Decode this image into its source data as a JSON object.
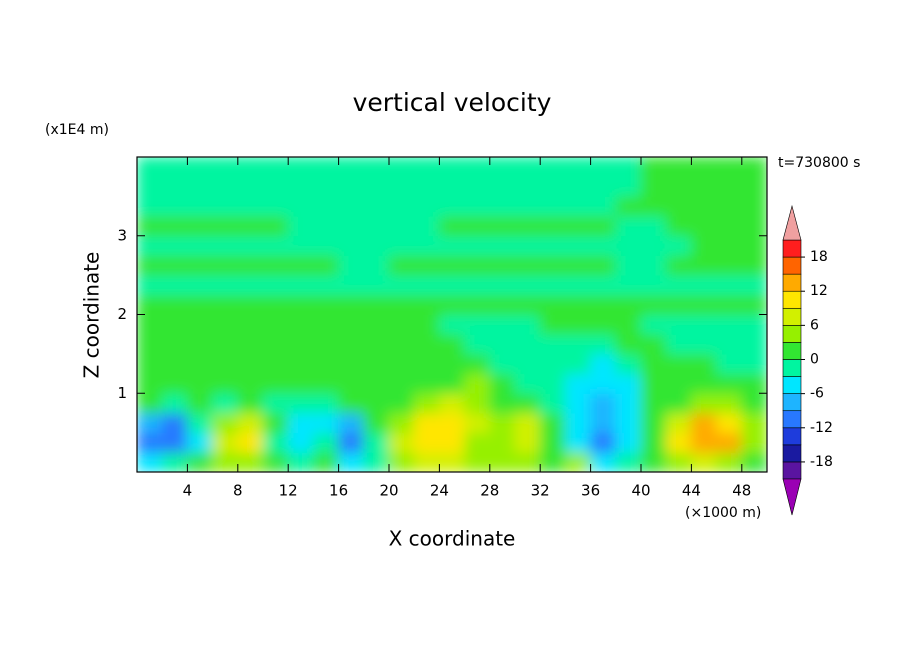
{
  "chart_data": {
    "type": "contour",
    "title": "vertical velocity",
    "x_label": "X coordinate",
    "y_label": "Z coordinate",
    "x_unit": "(×1000 m)",
    "y_unit": "(x1E4 m)",
    "time_label": "t=730800 s",
    "xlim": [
      0,
      50
    ],
    "ylim": [
      0,
      4
    ],
    "xticks": [
      4,
      8,
      12,
      16,
      20,
      24,
      28,
      32,
      36,
      40,
      44,
      48
    ],
    "yticks": [
      1,
      2,
      3
    ],
    "levels": [
      -21,
      -18,
      -15,
      -12,
      -9,
      -6,
      -3,
      0,
      3,
      6,
      9,
      12,
      15,
      18,
      21
    ],
    "colors": [
      "#5a14a0",
      "#1a1aa0",
      "#1e3cdc",
      "#2878ff",
      "#1eb4ff",
      "#00e6ff",
      "#00f5a0",
      "#32e632",
      "#96f000",
      "#d2f000",
      "#ffe600",
      "#ffaa00",
      "#ff6400",
      "#ff1e1e"
    ],
    "extend_colors": [
      "#9a00b4",
      "#f0a0a0"
    ],
    "colorbar_ticks": [
      -18,
      -12,
      -6,
      0,
      6,
      12,
      18
    ],
    "x": [
      1,
      3,
      5,
      7,
      9,
      11,
      13,
      15,
      17,
      19,
      21,
      23,
      25,
      27,
      29,
      31,
      33,
      35,
      37,
      39,
      41,
      43,
      45,
      47,
      49
    ],
    "y": [
      0.125,
      0.375,
      0.625,
      0.875,
      1.125,
      1.375,
      1.625,
      1.875,
      2.125,
      2.375,
      2.625,
      2.875,
      3.125,
      3.375,
      3.625,
      3.875
    ],
    "values": [
      [
        -4,
        -3,
        1,
        3,
        4,
        1,
        -1,
        1,
        -4,
        -1,
        4,
        6,
        7,
        3,
        4,
        5,
        1,
        4,
        -4,
        -2,
        1,
        4,
        6,
        5,
        2
      ],
      [
        -10,
        -12,
        -4,
        6,
        9,
        -1,
        -5,
        -2,
        -12,
        -2,
        6,
        10,
        11,
        5,
        5,
        8,
        2,
        -4,
        -12,
        -6,
        1,
        10,
        14,
        13,
        5
      ],
      [
        -8,
        -10,
        -3,
        4,
        7,
        1,
        -6,
        -4,
        -8,
        1,
        5,
        10,
        9,
        6,
        4,
        7,
        1,
        -6,
        -9,
        -5,
        1,
        8,
        12,
        11,
        4
      ],
      [
        1,
        -1,
        1,
        -1,
        1,
        -1,
        -1,
        -1,
        1,
        1,
        1,
        4,
        7,
        5,
        2,
        1,
        -1,
        -5,
        -7,
        -4,
        1,
        1,
        5,
        4,
        1
      ],
      [
        1,
        1,
        1,
        1,
        1,
        1,
        1,
        1,
        1,
        1,
        1,
        1,
        2,
        4,
        1,
        -1,
        -1,
        -4,
        -6,
        -4,
        1,
        1,
        1,
        1,
        1
      ],
      [
        1,
        1,
        1,
        1,
        1,
        1,
        1,
        1,
        1,
        1,
        1,
        1,
        1,
        1,
        -1,
        -1,
        -1,
        -1,
        -4,
        -1,
        1,
        1,
        1,
        -1,
        -1
      ],
      [
        1,
        1,
        1,
        1,
        1,
        1,
        1,
        1,
        1,
        1,
        1,
        1,
        1,
        -1,
        -1,
        -1,
        -1,
        -1,
        -1,
        1,
        1,
        -1,
        -1,
        -1,
        -1
      ],
      [
        1,
        1,
        1,
        1,
        1,
        1,
        1,
        1,
        1,
        1,
        1,
        1,
        -1,
        -1,
        -1,
        -1,
        1,
        1,
        1,
        1,
        -1,
        -1,
        -1,
        -1,
        -1
      ],
      [
        1,
        1,
        1,
        1,
        1,
        1,
        1,
        1,
        1,
        1,
        1,
        1,
        1,
        1,
        1,
        1,
        1,
        1,
        1,
        1,
        1,
        1,
        1,
        1,
        1
      ],
      [
        -1,
        -1,
        -1,
        -1,
        -1,
        -1,
        -1,
        -1,
        -1,
        -1,
        -1,
        -1,
        -1,
        -1,
        -1,
        -1,
        -1,
        -1,
        -1,
        -1,
        -1,
        -1,
        -1,
        -1,
        -1
      ],
      [
        1,
        1,
        1,
        1,
        1,
        1,
        1,
        1,
        -1,
        -1,
        1,
        1,
        1,
        1,
        1,
        1,
        1,
        1,
        1,
        -1,
        -1,
        1,
        1,
        1,
        1
      ],
      [
        -1,
        -1,
        -1,
        -1,
        -1,
        -1,
        -1,
        -1,
        -1,
        -1,
        -1,
        -1,
        -1,
        -1,
        -1,
        -1,
        -1,
        -1,
        -1,
        -1,
        -1,
        -1,
        1,
        1,
        1
      ],
      [
        1,
        1,
        1,
        1,
        1,
        1,
        -1,
        -1,
        -1,
        -1,
        -1,
        -1,
        1,
        1,
        1,
        1,
        1,
        1,
        1,
        -1,
        -1,
        1,
        1,
        1,
        1
      ],
      [
        -1,
        -1,
        -1,
        -1,
        -1,
        -1,
        -1,
        -1,
        -1,
        -1,
        -1,
        -1,
        -1,
        -1,
        -1,
        -1,
        -1,
        -1,
        -1,
        1,
        1,
        1,
        1,
        1,
        1
      ],
      [
        -1,
        -1,
        -1,
        -1,
        -1,
        -1,
        -1,
        -1,
        -1,
        -1,
        -1,
        -1,
        -1,
        -1,
        -1,
        -1,
        -1,
        -1,
        -1,
        -1,
        1,
        1,
        1,
        1,
        1
      ],
      [
        -1,
        -1,
        -1,
        -1,
        -1,
        -1,
        -1,
        -1,
        -1,
        -1,
        -1,
        -1,
        -1,
        -1,
        -1,
        -1,
        -1,
        -1,
        -1,
        -1,
        1,
        1,
        1,
        1,
        1
      ]
    ]
  }
}
